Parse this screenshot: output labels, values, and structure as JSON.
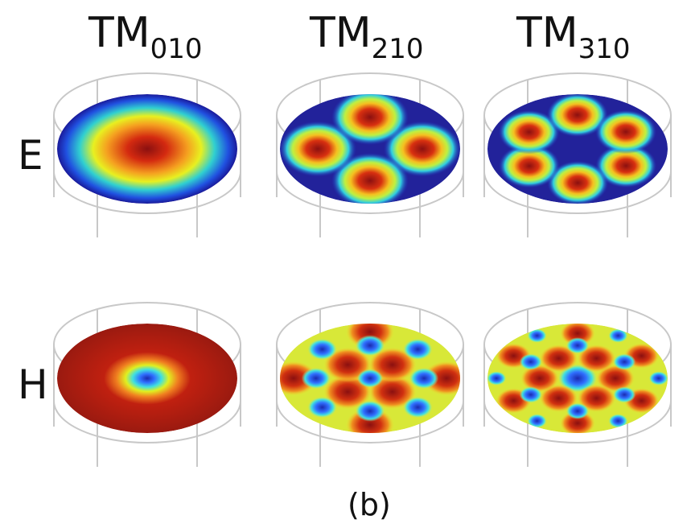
{
  "columns": [
    {
      "main": "TM",
      "sub": "010"
    },
    {
      "main": "TM",
      "sub": "210"
    },
    {
      "main": "TM",
      "sub": "310"
    }
  ],
  "rows": [
    "E",
    "H"
  ],
  "caption": "(b)"
}
